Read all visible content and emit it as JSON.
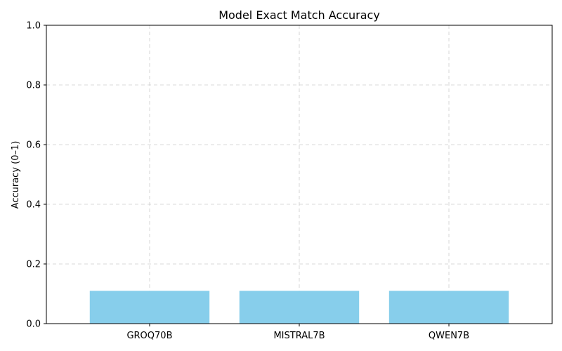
{
  "chart_data": {
    "type": "bar",
    "title": "Model Exact Match Accuracy",
    "xlabel": "",
    "ylabel": "Accuracy (0–1)",
    "categories": [
      "GROQ70B",
      "MISTRAL7B",
      "QWEN7B"
    ],
    "values": [
      0.11,
      0.11,
      0.11
    ],
    "ylim": [
      0,
      1
    ],
    "yticks": [
      "0.0",
      "0.2",
      "0.4",
      "0.6",
      "0.8",
      "1.0"
    ],
    "grid": true,
    "bar_color": "#87ceeb"
  }
}
